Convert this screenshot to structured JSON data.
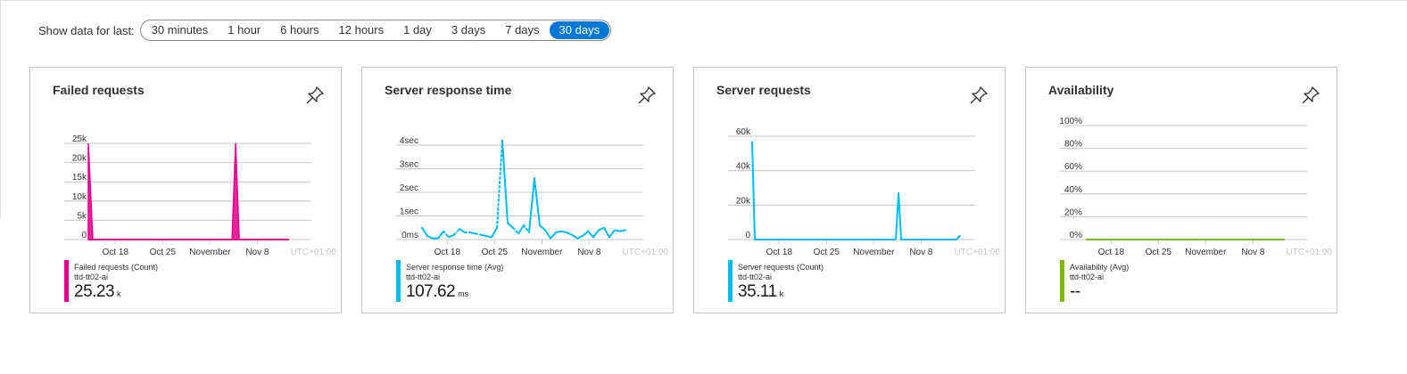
{
  "time_range": {
    "label": "Show data for last:",
    "options": [
      "30 minutes",
      "1 hour",
      "6 hours",
      "12 hours",
      "1 day",
      "3 days",
      "7 days",
      "30 days"
    ],
    "selected": "30 days"
  },
  "x_axis": {
    "ticks": [
      "Oct 18",
      "Oct 25",
      "November",
      "Nov 8"
    ],
    "timezone": "UTC+01:00"
  },
  "colors": {
    "failed": "#e3008c",
    "response": "#00bcf2",
    "server": "#00bcf2",
    "availability": "#7fba00",
    "accent": "#0078d4"
  },
  "cards": [
    {
      "title": "Failed requests",
      "legend_name": "Failed requests (Count)",
      "resource": "ttd-tt02-ai",
      "value": "25.23",
      "unit": "k"
    },
    {
      "title": "Server response time",
      "legend_name": "Server response time (Avg)",
      "resource": "ttd-tt02-ai",
      "value": "107.62",
      "unit": "ms"
    },
    {
      "title": "Server requests",
      "legend_name": "Server requests (Count)",
      "resource": "ttd-tt02-ai",
      "value": "35.11",
      "unit": "k"
    },
    {
      "title": "Availability",
      "legend_name": "Availability (Avg)",
      "resource": "ttd-tt02-ai",
      "value": "--",
      "unit": ""
    }
  ],
  "chart_data": [
    {
      "type": "bar",
      "title": "Failed requests",
      "y_ticks": [
        "0",
        "5k",
        "10k",
        "15k",
        "20k",
        "25k"
      ],
      "ylim": [
        0,
        25000
      ],
      "series": [
        {
          "name": "Failed requests (Count)",
          "x": [
            "Oct 15",
            "Oct 16",
            "Nov 4",
            "Nov 5"
          ],
          "values": [
            25000,
            0,
            25000,
            0
          ]
        }
      ]
    },
    {
      "type": "line",
      "title": "Server response time",
      "y_ticks": [
        "0ms",
        "1sec",
        "2sec",
        "3sec",
        "4sec"
      ],
      "ylim": [
        0,
        4
      ],
      "series": [
        {
          "name": "Server response time (Avg)",
          "values_sec": [
            0.5,
            0.15,
            0.05,
            0.05,
            0.35,
            0.1,
            0.2,
            0.45,
            0.3,
            0.3,
            0.25,
            0.2,
            0.15,
            0.1,
            0.5,
            4.2,
            0.7,
            0.5,
            0.25,
            0.6,
            0.3,
            2.6,
            0.6,
            0.4,
            0.05,
            0.3,
            0.35,
            0.3,
            0.2,
            0.05,
            0.15,
            0.35,
            0.1,
            0.4,
            0.5,
            0.1,
            0.4,
            0.35,
            0.4
          ]
        }
      ]
    },
    {
      "type": "line",
      "title": "Server requests",
      "y_ticks": [
        "0",
        "20k",
        "40k",
        "60k"
      ],
      "ylim": [
        0,
        60000
      ],
      "series": [
        {
          "name": "Server requests (Count)",
          "x": [
            "Oct 15",
            "Oct 16",
            "Nov 4",
            "Nov 5",
            "Nov 14",
            "Nov 15"
          ],
          "values": [
            57000,
            0,
            27000,
            0,
            2000,
            1500
          ]
        }
      ]
    },
    {
      "type": "line",
      "title": "Availability",
      "y_ticks": [
        "0%",
        "20%",
        "40%",
        "60%",
        "80%",
        "100%"
      ],
      "ylim": [
        0,
        100
      ],
      "series": [
        {
          "name": "Availability (Avg)",
          "values": []
        }
      ]
    }
  ]
}
